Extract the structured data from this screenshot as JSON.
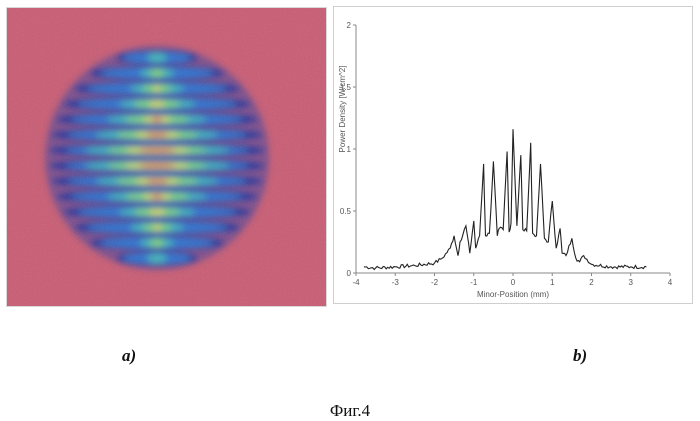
{
  "figure": {
    "caption": "Фиг.4",
    "panel_a_label": "a)",
    "panel_b_label": "b)"
  },
  "beam_image": {
    "background_color": "#c95a72",
    "colormap": [
      "#1a2f9c",
      "#2f72d0",
      "#3fb2b8",
      "#7fd46a",
      "#d9d84a",
      "#e3663e"
    ],
    "fringe_count": 14
  },
  "chart_data": {
    "type": "line",
    "xlabel": "Minor-Position (mm)",
    "ylabel": "Power Density [W/cm^2]",
    "xlim": [
      -4,
      4
    ],
    "ylim": [
      0,
      2
    ],
    "x_ticks": [
      "-4",
      "-3",
      "-2",
      "-1",
      "0",
      "1",
      "2",
      "3",
      "4"
    ],
    "y_ticks": [
      "0",
      "0.5",
      "1",
      "1.5",
      "2"
    ],
    "grid": false,
    "line_color": "#222222",
    "series": [
      {
        "x": [
          -3.8,
          -3.5,
          -3.0,
          -2.5,
          -2.0,
          -1.8,
          -1.6,
          -1.5,
          -1.4,
          -1.35,
          -1.2,
          -1.1,
          -1.0,
          -0.95,
          -0.85,
          -0.75,
          -0.7,
          -0.6,
          -0.5,
          -0.4,
          -0.35,
          -0.25,
          -0.15,
          -0.1,
          -0.05,
          0.0,
          0.1,
          0.2,
          0.25,
          0.35,
          0.45,
          0.5,
          0.6,
          0.7,
          0.8,
          0.9,
          1.0,
          1.1,
          1.2,
          1.25,
          1.35,
          1.5,
          1.6,
          1.7,
          1.8,
          2.0,
          2.5,
          3.0,
          3.4
        ],
        "y": [
          0.05,
          0.04,
          0.05,
          0.06,
          0.08,
          0.12,
          0.2,
          0.3,
          0.14,
          0.25,
          0.38,
          0.16,
          0.42,
          0.2,
          0.3,
          0.88,
          0.3,
          0.32,
          0.9,
          0.3,
          0.36,
          0.35,
          0.98,
          0.33,
          0.4,
          1.16,
          0.38,
          0.95,
          0.35,
          0.34,
          1.05,
          0.32,
          0.3,
          0.88,
          0.28,
          0.25,
          0.58,
          0.2,
          0.36,
          0.16,
          0.14,
          0.28,
          0.12,
          0.09,
          0.14,
          0.07,
          0.05,
          0.05,
          0.05
        ]
      }
    ]
  }
}
